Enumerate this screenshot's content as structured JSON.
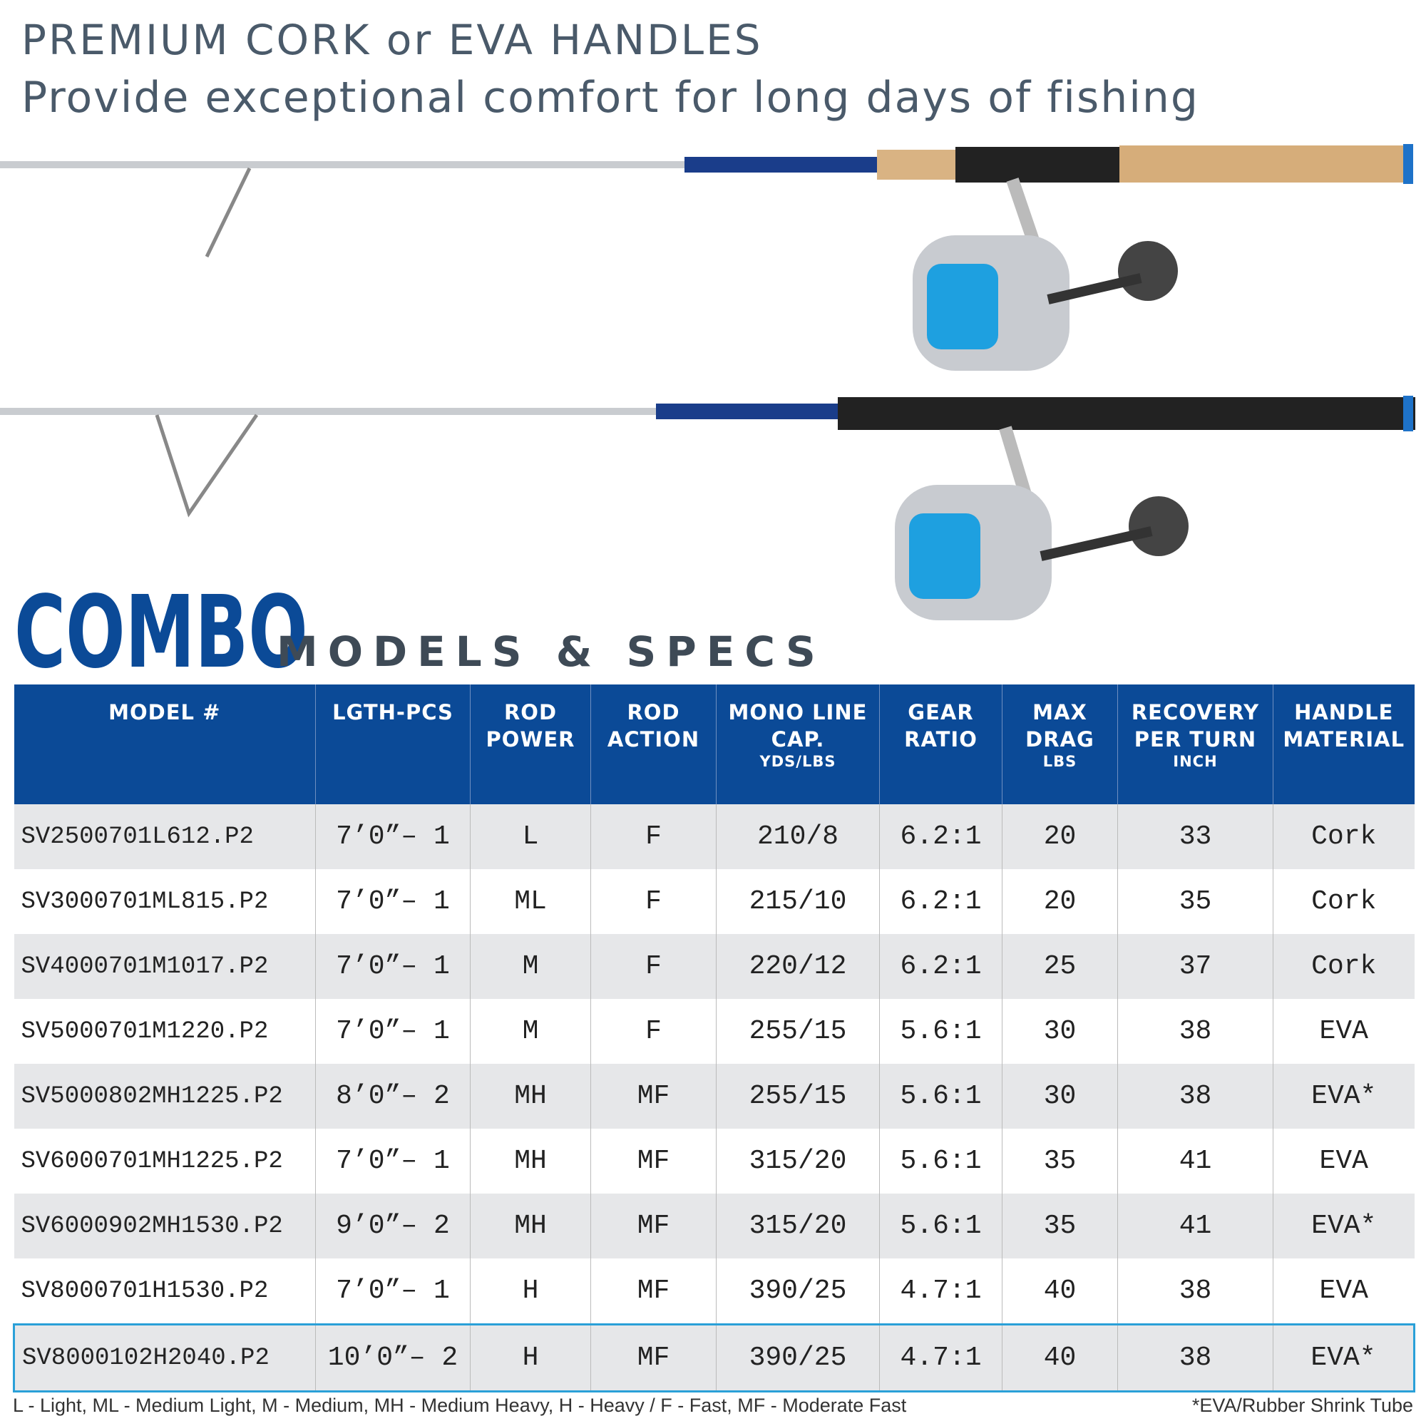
{
  "header": {
    "line1": "PREMIUM CORK or EVA HANDLES",
    "line2": "Provide exceptional comfort for long days of fishing"
  },
  "section": {
    "title": "COMBO",
    "subtitle": "MODELS & SPECS"
  },
  "table": {
    "columns": [
      {
        "label": "MODEL #"
      },
      {
        "label": "LGTH-PCS"
      },
      {
        "label": "ROD POWER"
      },
      {
        "label": "ROD ACTION"
      },
      {
        "label": "MONO LINE CAP.",
        "unit": "YDS/LBS"
      },
      {
        "label": "GEAR RATIO"
      },
      {
        "label": "MAX DRAG",
        "unit": "LBS"
      },
      {
        "label": "RECOVERY PER TURN",
        "unit": "INCH"
      },
      {
        "label": "HANDLE MATERIAL"
      }
    ],
    "rows": [
      [
        "SV2500701L612.P2",
        "7’0”– 1",
        "L",
        "F",
        "210/8",
        "6.2:1",
        "20",
        "33",
        "Cork"
      ],
      [
        "SV3000701ML815.P2",
        "7’0”– 1",
        "ML",
        "F",
        "215/10",
        "6.2:1",
        "20",
        "35",
        "Cork"
      ],
      [
        "SV4000701M1017.P2",
        "7’0”– 1",
        "M",
        "F",
        "220/12",
        "6.2:1",
        "25",
        "37",
        "Cork"
      ],
      [
        "SV5000701M1220.P2",
        "7’0”– 1",
        "M",
        "F",
        "255/15",
        "5.6:1",
        "30",
        "38",
        "EVA"
      ],
      [
        "SV5000802MH1225.P2",
        "8’0”– 2",
        "MH",
        "MF",
        "255/15",
        "5.6:1",
        "30",
        "38",
        "EVA*"
      ],
      [
        "SV6000701MH1225.P2",
        "7’0”– 1",
        "MH",
        "MF",
        "315/20",
        "5.6:1",
        "35",
        "41",
        "EVA"
      ],
      [
        "SV6000902MH1530.P2",
        "9’0”– 2",
        "MH",
        "MF",
        "315/20",
        "5.6:1",
        "35",
        "41",
        "EVA*"
      ],
      [
        "SV8000701H1530.P2",
        "7’0”– 1",
        "H",
        "MF",
        "390/25",
        "4.7:1",
        "40",
        "38",
        "EVA"
      ],
      [
        "SV8000102H2040.P2",
        "10’0”– 2",
        "H",
        "MF",
        "390/25",
        "4.7:1",
        "40",
        "38",
        "EVA*"
      ]
    ]
  },
  "footer": {
    "legend": "L - Light, ML - Medium Light, M - Medium, MH - Medium Heavy, H - Heavy / F - Fast, MF - Moderate Fast",
    "note": "*EVA/Rubber Shrink Tube"
  }
}
